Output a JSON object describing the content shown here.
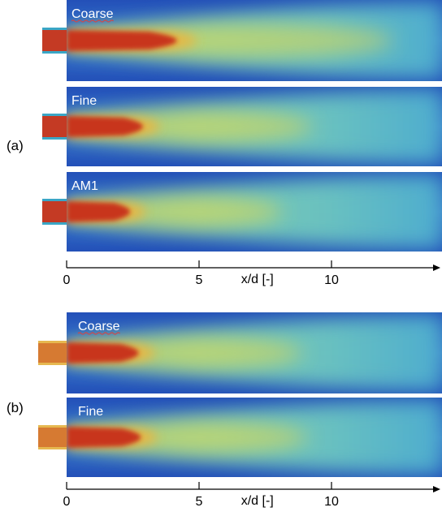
{
  "figure": {
    "groups": [
      {
        "label": "(a)",
        "panels": [
          {
            "label": "Coarse",
            "label_underlined": true,
            "core_length_xd": 5.2
          },
          {
            "label": "Fine",
            "label_underlined": false,
            "core_length_xd": 3.6
          },
          {
            "label": "AM1",
            "label_underlined": false,
            "core_length_xd": 3.0
          }
        ],
        "axis": {
          "ticks": [
            "0",
            "5",
            "10"
          ],
          "tick_values": [
            0,
            5,
            10
          ],
          "label": "x/d [-]",
          "max_xd": 14
        }
      },
      {
        "label": "(b)",
        "panels": [
          {
            "label": "Coarse",
            "label_underlined": true,
            "core_length_xd": 3.4
          },
          {
            "label": "Fine",
            "label_underlined": false,
            "core_length_xd": 3.5
          }
        ],
        "axis": {
          "ticks": [
            "0",
            "5",
            "10"
          ],
          "tick_values": [
            0,
            5,
            10
          ],
          "label": "x/d [-]",
          "max_xd": 14
        }
      }
    ],
    "colors": {
      "background": "#2c63c6",
      "edge": "#2350b8",
      "core": "#c8361a",
      "hot": "#e85a22",
      "mid": "#f0b43a",
      "yellow": "#e8dc4a",
      "green": "#7ccba8",
      "cyan": "#4fb9cf",
      "nozzle_a": "#c43a24",
      "nozzle_b": "#d67a32",
      "underline": "#d04848"
    }
  }
}
